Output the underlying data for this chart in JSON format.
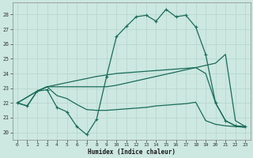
{
  "xlabel": "Humidex (Indice chaleur)",
  "bg_color": "#cce8e0",
  "grid_color": "#b8d8d0",
  "line_color": "#1a6b5a",
  "xlim": [
    -0.5,
    23.5
  ],
  "ylim": [
    19.5,
    28.8
  ],
  "xticks": [
    0,
    1,
    2,
    3,
    4,
    5,
    6,
    7,
    8,
    9,
    10,
    11,
    12,
    13,
    14,
    15,
    16,
    17,
    18,
    19,
    20,
    21,
    22,
    23
  ],
  "yticks": [
    20,
    21,
    22,
    23,
    24,
    25,
    26,
    27,
    28
  ],
  "line1_x": [
    0,
    1,
    2,
    3,
    4,
    5,
    6,
    7,
    8,
    9,
    10,
    11,
    12,
    13,
    14,
    15,
    16,
    17,
    18,
    19,
    20,
    21,
    22,
    23
  ],
  "line1_y": [
    22.0,
    21.8,
    22.8,
    22.9,
    21.7,
    21.4,
    20.4,
    19.85,
    20.9,
    23.8,
    26.5,
    27.2,
    27.85,
    27.95,
    27.55,
    28.35,
    27.85,
    27.95,
    27.15,
    25.3,
    22.0,
    20.8,
    20.45,
    20.4
  ],
  "line2_x": [
    0,
    1,
    2,
    3,
    4,
    5,
    6,
    7,
    8,
    9,
    10,
    11,
    12,
    13,
    14,
    15,
    16,
    17,
    18,
    19,
    20,
    21,
    22,
    23
  ],
  "line2_y": [
    22.0,
    21.8,
    22.8,
    23.1,
    22.5,
    22.3,
    21.9,
    21.55,
    21.5,
    21.5,
    21.55,
    21.6,
    21.65,
    21.7,
    21.8,
    21.85,
    21.9,
    21.95,
    22.05,
    20.8,
    20.55,
    20.45,
    20.4,
    20.35
  ],
  "line3_x": [
    0,
    2,
    3,
    9,
    10,
    11,
    12,
    13,
    14,
    15,
    16,
    17,
    18,
    19,
    20,
    21,
    22,
    23
  ],
  "line3_y": [
    22.0,
    22.8,
    23.1,
    23.1,
    23.2,
    23.35,
    23.5,
    23.65,
    23.8,
    23.95,
    24.1,
    24.25,
    24.4,
    24.55,
    24.7,
    25.3,
    20.8,
    20.4
  ],
  "line4_x": [
    0,
    2,
    3,
    8,
    9,
    10,
    11,
    12,
    13,
    14,
    15,
    16,
    17,
    18,
    19,
    20,
    21,
    22,
    23
  ],
  "line4_y": [
    22.0,
    22.8,
    23.1,
    23.8,
    23.9,
    24.0,
    24.05,
    24.1,
    24.15,
    24.2,
    24.25,
    24.3,
    24.35,
    24.4,
    24.0,
    22.0,
    20.8,
    20.45,
    20.35
  ]
}
